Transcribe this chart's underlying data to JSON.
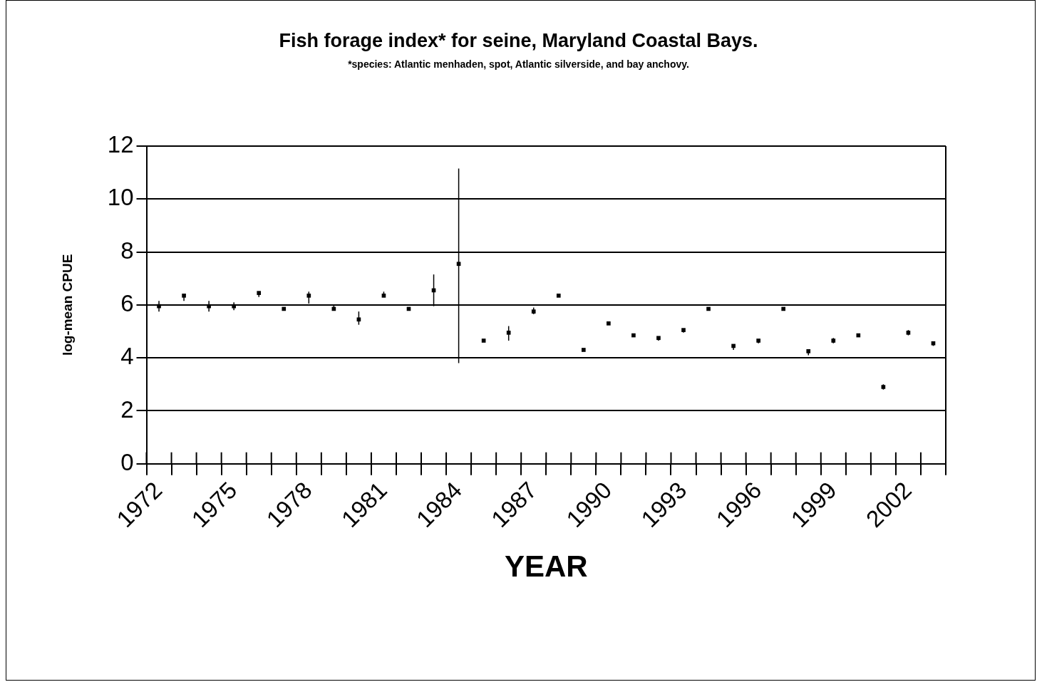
{
  "chart_data": {
    "type": "scatter",
    "title": "Fish forage index* for seine, Maryland Coastal Bays.",
    "subtitle": "*species: Atlantic menhaden, spot, Atlantic silverside, and bay anchovy.",
    "xlabel": "YEAR",
    "ylabel": "log-mean CPUE",
    "categories": [
      "1972",
      null,
      null,
      "1975",
      null,
      null,
      "1978",
      null,
      null,
      "1981",
      null,
      null,
      "1984",
      null,
      null,
      "1987",
      null,
      null,
      "1990",
      null,
      null,
      "1993",
      null,
      null,
      "1996",
      null,
      null,
      "1999",
      null,
      null,
      "2002",
      null
    ],
    "series": [
      {
        "color": "#000000",
        "values": [
          5.95,
          6.35,
          5.95,
          5.95,
          6.45,
          5.85,
          6.35,
          5.85,
          5.45,
          6.35,
          5.85,
          6.55,
          7.55,
          4.65,
          4.95,
          5.75,
          6.35,
          4.3,
          5.3,
          4.85,
          4.75,
          5.05,
          5.85,
          4.45,
          4.65,
          5.85,
          4.25,
          4.65,
          4.85,
          2.9,
          4.95,
          4.55
        ],
        "errors": [
          [
            5.75,
            6.15
          ],
          [
            6.15,
            6.4
          ],
          [
            5.75,
            6.15
          ],
          [
            5.8,
            6.1
          ],
          [
            6.3,
            6.5
          ],
          null,
          [
            6.05,
            6.5
          ],
          [
            5.85,
            6.0
          ],
          [
            5.25,
            5.75
          ],
          [
            6.3,
            6.5
          ],
          null,
          [
            5.95,
            7.15
          ],
          [
            3.8,
            11.15
          ],
          null,
          [
            4.65,
            5.2
          ],
          [
            5.65,
            5.9
          ],
          null,
          null,
          null,
          [
            4.8,
            4.9
          ],
          [
            4.65,
            4.8
          ],
          [
            4.95,
            5.1
          ],
          null,
          [
            4.3,
            4.5
          ],
          [
            4.55,
            4.7
          ],
          null,
          [
            4.1,
            4.3
          ],
          [
            4.55,
            4.75
          ],
          [
            4.8,
            4.9
          ],
          [
            2.8,
            3.0
          ],
          [
            4.85,
            5.05
          ],
          [
            4.45,
            4.6
          ]
        ]
      }
    ],
    "ylim": [
      0,
      12
    ],
    "yticks": [
      0,
      2,
      4,
      6,
      8,
      10,
      12
    ],
    "grid": "y",
    "legend": false,
    "marker": "square"
  }
}
